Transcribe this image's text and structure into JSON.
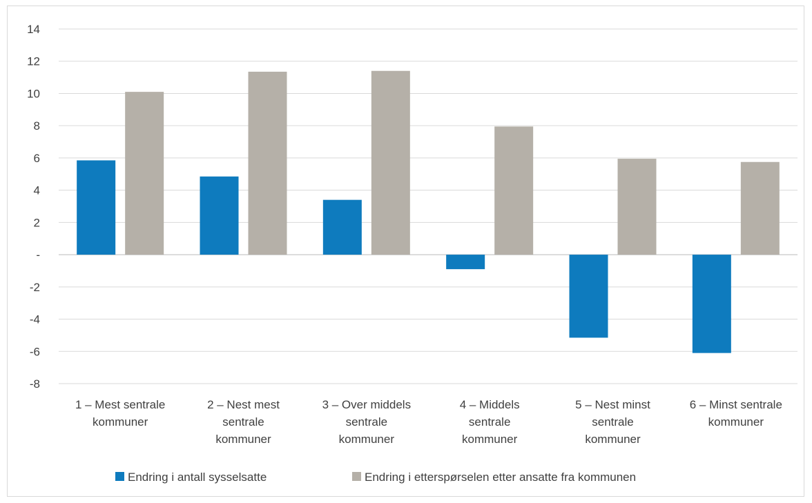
{
  "chart_data": {
    "type": "bar",
    "categories": [
      [
        "1 – Mest sentrale",
        "kommuner"
      ],
      [
        "2 – Nest mest",
        "sentrale",
        "kommuner"
      ],
      [
        "3 – Over middels",
        "sentrale",
        "kommuner"
      ],
      [
        "4 – Middels",
        "sentrale",
        "kommuner"
      ],
      [
        "5 – Nest minst",
        "sentrale",
        "kommuner"
      ],
      [
        "6 – Minst sentrale",
        "kommuner"
      ]
    ],
    "series": [
      {
        "name": "Endring i antall sysselsatte",
        "color": "#0E7BBE",
        "values": [
          5.85,
          4.85,
          3.4,
          -0.9,
          -5.15,
          -6.1
        ]
      },
      {
        "name": "Endring i etterspørselen etter ansatte fra kommunen",
        "color": "#B5B0A8",
        "values": [
          10.1,
          11.35,
          11.4,
          7.95,
          5.95,
          5.75
        ]
      }
    ],
    "yticks": [
      14,
      12,
      10,
      8,
      6,
      4,
      2,
      0,
      -2,
      -4,
      -6,
      -8
    ],
    "ytick_labels": [
      "14",
      "12",
      "10",
      "8",
      "6",
      "4",
      "2",
      "-",
      "-2",
      "-4",
      "-6",
      "-8"
    ],
    "ylim": [
      -8,
      14
    ],
    "grid": true,
    "legend_position": "bottom"
  }
}
